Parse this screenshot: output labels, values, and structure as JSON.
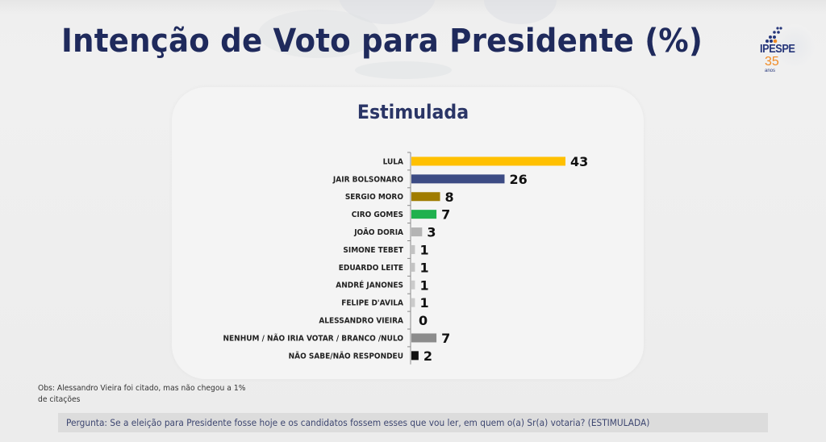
{
  "header": {
    "title": "Intenção de Voto para Presidente (%)",
    "logo": {
      "name": "IPESPE",
      "number": "35",
      "suffix": "anos"
    }
  },
  "panel": {
    "subtitle": "Estimulada"
  },
  "chart_data": {
    "type": "bar",
    "orientation": "horizontal",
    "title": "Estimulada",
    "xlabel": "",
    "ylabel": "",
    "xlim": [
      0,
      43
    ],
    "grid": false,
    "legend": "none",
    "categories": [
      "LULA",
      "JAIR BOLSONARO",
      "SERGIO MORO",
      "CIRO GOMES",
      "JOÃO DORIA",
      "SIMONE TEBET",
      "EDUARDO LEITE",
      "ANDRÉ JANONES",
      "FELIPE D'AVILA",
      "ALESSANDRO VIEIRA",
      "NENHUM / NÃO IRIA VOTAR / BRANCO /NULO",
      "NÃO SABE/NÃO RESPONDEU"
    ],
    "values": [
      43,
      26,
      8,
      7,
      3,
      1,
      1,
      1,
      1,
      0,
      7,
      2
    ],
    "colors": [
      "#ffc000",
      "#3c4b84",
      "#a07c00",
      "#1fb14e",
      "#b4b4b4",
      "#c3c3c3",
      "#c3c3c3",
      "#cbcbcb",
      "#cbcbcb",
      "#cbcbcb",
      "#8c8c8c",
      "#111111"
    ],
    "data_labels": [
      "43",
      "26",
      "8",
      "7",
      "3",
      "1",
      "1",
      "1",
      "1",
      "0",
      "7",
      "2"
    ]
  },
  "footer": {
    "obs": "Obs: Alessandro Vieira foi citado, mas não chegou a 1% de citações",
    "question": "Pergunta:  Se a eleição para Presidente fosse hoje e os candidatos fossem esses que vou ler, em quem o(a) Sr(a) votaria? (ESTIMULADA)"
  }
}
